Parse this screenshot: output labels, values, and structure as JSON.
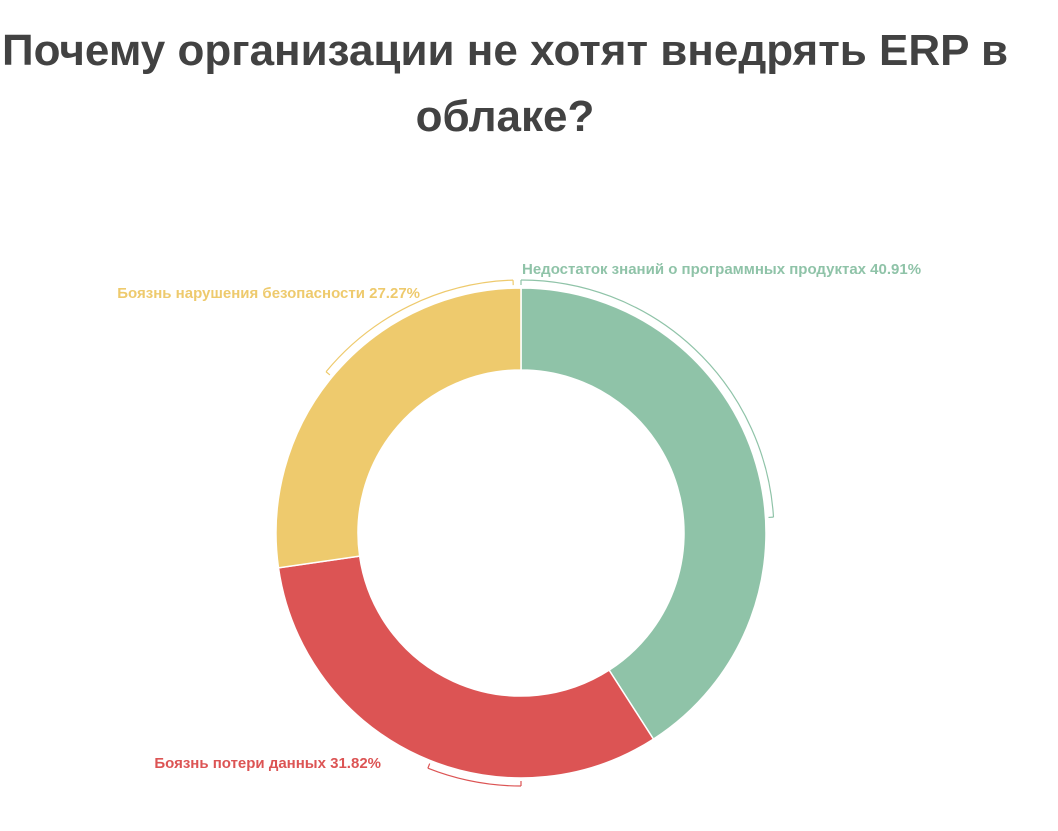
{
  "chart_data": {
    "type": "pie",
    "title": "Почему организации не хотят внедрять ERP в облаке?",
    "donut": true,
    "categories": [
      "Недостаток знаний о программных продуктах",
      "Боязнь потери данных",
      "Боязнь нарушения безопасности"
    ],
    "values": [
      40.91,
      31.82,
      27.27
    ],
    "value_labels": [
      "40.91%",
      "31.82%",
      "27.27%"
    ],
    "colors": [
      "#8fc3a8",
      "#dc5454",
      "#eeca6d"
    ],
    "legend": "none"
  }
}
